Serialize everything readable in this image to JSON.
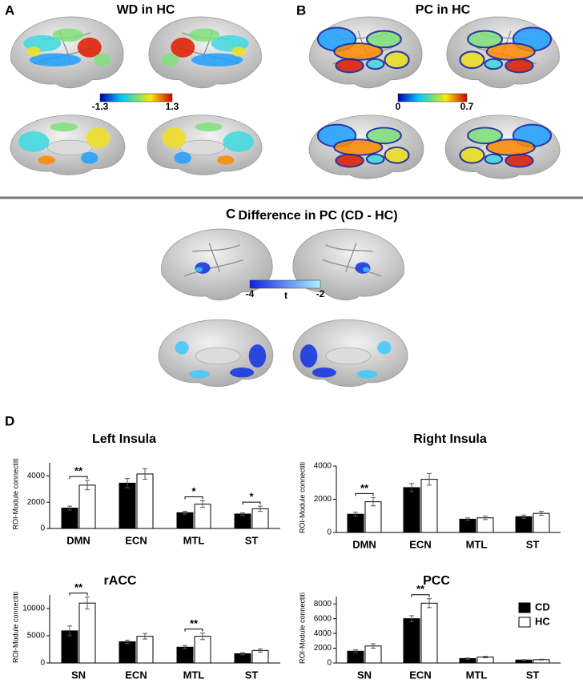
{
  "panels": [
    {
      "label": "A",
      "title": "WD in HC",
      "colorbar_ticks": [
        -1.3,
        1.3
      ]
    },
    {
      "label": "B",
      "title": "PC in HC",
      "colorbar_ticks": [
        0,
        0.7
      ]
    },
    {
      "label": "C",
      "title": "Difference in PC (CD - HC)",
      "colorbar_ticks": [
        -4,
        -2
      ],
      "colorbar_label": "t"
    },
    {
      "label": "D"
    }
  ],
  "chart_data": [
    {
      "type": "bar",
      "title": "Left Insula",
      "y_label": "ROI-Module connectiti",
      "categories": [
        "DMN",
        "ECN",
        "MTL",
        "ST"
      ],
      "series": [
        {
          "color": "#000000",
          "values": [
            1550,
            3450,
            1200,
            1100
          ],
          "errors": [
            150,
            350,
            100,
            100
          ]
        },
        {
          "color": "#ffffff",
          "values": [
            3300,
            4150,
            1850,
            1500
          ],
          "errors": [
            350,
            400,
            250,
            200
          ]
        }
      ],
      "ylim": [
        0,
        5000
      ],
      "yticks": [
        0,
        2000,
        4000
      ],
      "annotations": [
        {
          "text": "**",
          "category": "DMN"
        },
        {
          "text": "*",
          "category": "MTL"
        },
        {
          "text": "*",
          "category": "ST"
        }
      ]
    },
    {
      "type": "bar",
      "title": "Right Insula",
      "y_label": "ROI-Module connectiti",
      "categories": [
        "DMN",
        "ECN",
        "MTL",
        "ST"
      ],
      "series": [
        {
          "color": "#000000",
          "values": [
            1100,
            2700,
            800,
            950
          ],
          "errors": [
            120,
            250,
            80,
            100
          ]
        },
        {
          "color": "#ffffff",
          "values": [
            1850,
            3200,
            880,
            1150
          ],
          "errors": [
            250,
            350,
            100,
            120
          ]
        }
      ],
      "ylim": [
        0,
        4000
      ],
      "yticks": [
        0,
        2000,
        4000
      ],
      "annotations": [
        {
          "text": "**",
          "category": "DMN"
        }
      ]
    },
    {
      "type": "bar",
      "title": "rACC",
      "y_label": "ROI-Module connectiti",
      "categories": [
        "SN",
        "ECN",
        "MTL",
        "ST"
      ],
      "series": [
        {
          "color": "#000000",
          "values": [
            5900,
            3900,
            2900,
            1700
          ],
          "errors": [
            900,
            300,
            300,
            200
          ]
        },
        {
          "color": "#ffffff",
          "values": [
            11000,
            4900,
            4900,
            2300
          ],
          "errors": [
            1100,
            500,
            600,
            300
          ]
        }
      ],
      "ylim": [
        0,
        12500
      ],
      "yticks": [
        0,
        5000,
        10000
      ],
      "annotations": [
        {
          "text": "**",
          "category": "SN"
        },
        {
          "text": "**",
          "category": "MTL"
        }
      ]
    },
    {
      "type": "bar",
      "title": "PCC",
      "y_label": "ROI-Module connectiti",
      "categories": [
        "SN",
        "ECN",
        "MTL",
        "ST"
      ],
      "series": [
        {
          "name": "CD",
          "color": "#000000",
          "values": [
            1600,
            6000,
            600,
            400
          ],
          "errors": [
            200,
            400,
            80,
            60
          ]
        },
        {
          "name": "HC",
          "color": "#ffffff",
          "values": [
            2300,
            8100,
            800,
            450
          ],
          "errors": [
            300,
            600,
            100,
            60
          ]
        }
      ],
      "ylim": [
        0,
        9000
      ],
      "yticks": [
        0,
        2000,
        4000,
        6000,
        8000
      ],
      "legend": "upper right",
      "annotations": [
        {
          "text": "**",
          "category": "ECN"
        }
      ]
    }
  ]
}
